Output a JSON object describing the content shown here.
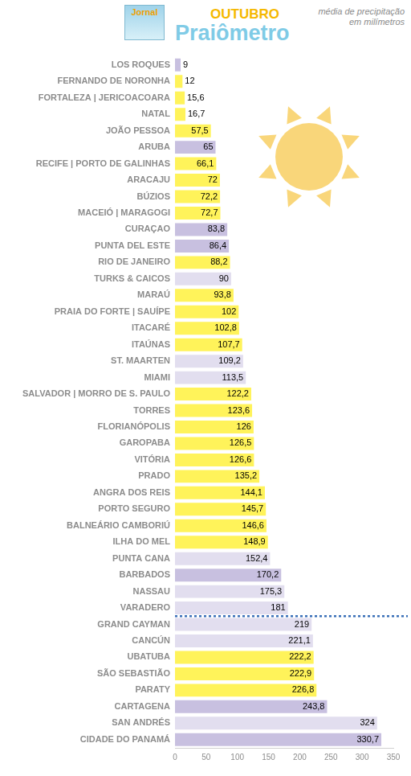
{
  "chart_data": {
    "type": "bar",
    "orientation": "horizontal",
    "title": "OUTUBRO",
    "subtitle": "Praiômetro",
    "axis_label": "média de precipitação em milímetros",
    "annotations": [
      "Jornal"
    ],
    "categories": [
      "LOS ROQUES",
      "FERNANDO DE NORONHA",
      "FORTALEZA | JERICOACOARA",
      "NATAL",
      "JOÃO PESSOA",
      "ARUBA",
      "RECIFE | PORTO DE GALINHAS",
      "ARACAJU",
      "BÚZIOS",
      "MACEIÓ | MARAGOGI",
      "CURAÇAO",
      "PUNTA DEL ESTE",
      "RIO DE JANEIRO",
      "TURKS & CAICOS",
      "MARAÚ",
      "PRAIA DO FORTE | SAUÍPE",
      "ITACARÉ",
      "ITAÚNAS",
      "ST. MAARTEN",
      "MIAMI",
      "SALVADOR | MORRO DE S. PAULO",
      "TORRES",
      "FLORIANÓPOLIS",
      "GAROPABA",
      "VITÓRIA",
      "PRADO",
      "ANGRA DOS REIS",
      "PORTO SEGURO",
      "BALNEÁRIO CAMBORIÚ",
      "ILHA DO MEL",
      "PUNTA CANA",
      "BARBADOS",
      "NASSAU",
      "VARADERO",
      "GRAND CAYMAN",
      "CANCÚN",
      "UBATUBA",
      "SÃO SEBASTIÃO",
      "PARATY",
      "CARTAGENA",
      "SAN ANDRÉS",
      "CIDADE DO PANAMÁ"
    ],
    "values": [
      9,
      12,
      15.6,
      16.7,
      57.5,
      65,
      66.1,
      72,
      72.2,
      72.7,
      83.8,
      86.4,
      88.2,
      90,
      93.8,
      102,
      102.8,
      107.7,
      109.2,
      113.5,
      122.2,
      123.6,
      126,
      126.5,
      126.6,
      135.2,
      144.1,
      145.7,
      146.6,
      148.9,
      152.4,
      170.2,
      175.3,
      181,
      219,
      221.1,
      222.2,
      222.9,
      226.8,
      243.8,
      324,
      330.7
    ],
    "value_labels": [
      "9",
      "12",
      "15,6",
      "16,7",
      "57,5",
      "65",
      "66,1",
      "72",
      "72,2",
      "72,7",
      "83,8",
      "86,4",
      "88,2",
      "90",
      "93,8",
      "102",
      "102,8",
      "107,7",
      "109,2",
      "113,5",
      "122,2",
      "123,6",
      "126",
      "126,5",
      "126,6",
      "135,2",
      "144,1",
      "145,7",
      "146,6",
      "148,9",
      "152,4",
      "170,2",
      "175,3",
      "181",
      "219",
      "221,1",
      "222,2",
      "222,9",
      "226,8",
      "243,8",
      "324",
      "330,7"
    ],
    "colors": [
      "#c8c0e0",
      "#fff35a",
      "#fff35a",
      "#fff35a",
      "#fff35a",
      "#c8c0e0",
      "#fff35a",
      "#fff35a",
      "#fff35a",
      "#fff35a",
      "#c8c0e0",
      "#c8c0e0",
      "#fff35a",
      "#e2deef",
      "#fff35a",
      "#fff35a",
      "#fff35a",
      "#fff35a",
      "#e2deef",
      "#e2deef",
      "#fff35a",
      "#fff35a",
      "#fff35a",
      "#fff35a",
      "#fff35a",
      "#fff35a",
      "#fff35a",
      "#fff35a",
      "#fff35a",
      "#fff35a",
      "#e2deef",
      "#c8c0e0",
      "#e2deef",
      "#e2deef",
      "#e2deef",
      "#e2deef",
      "#fff35a",
      "#fff35a",
      "#fff35a",
      "#c8c0e0",
      "#e2deef",
      "#c8c0e0"
    ],
    "xlim": [
      0,
      350
    ],
    "xticks": [
      0,
      50,
      100,
      150,
      200,
      250,
      300,
      350
    ],
    "grid": false,
    "data_labels": true
  }
}
